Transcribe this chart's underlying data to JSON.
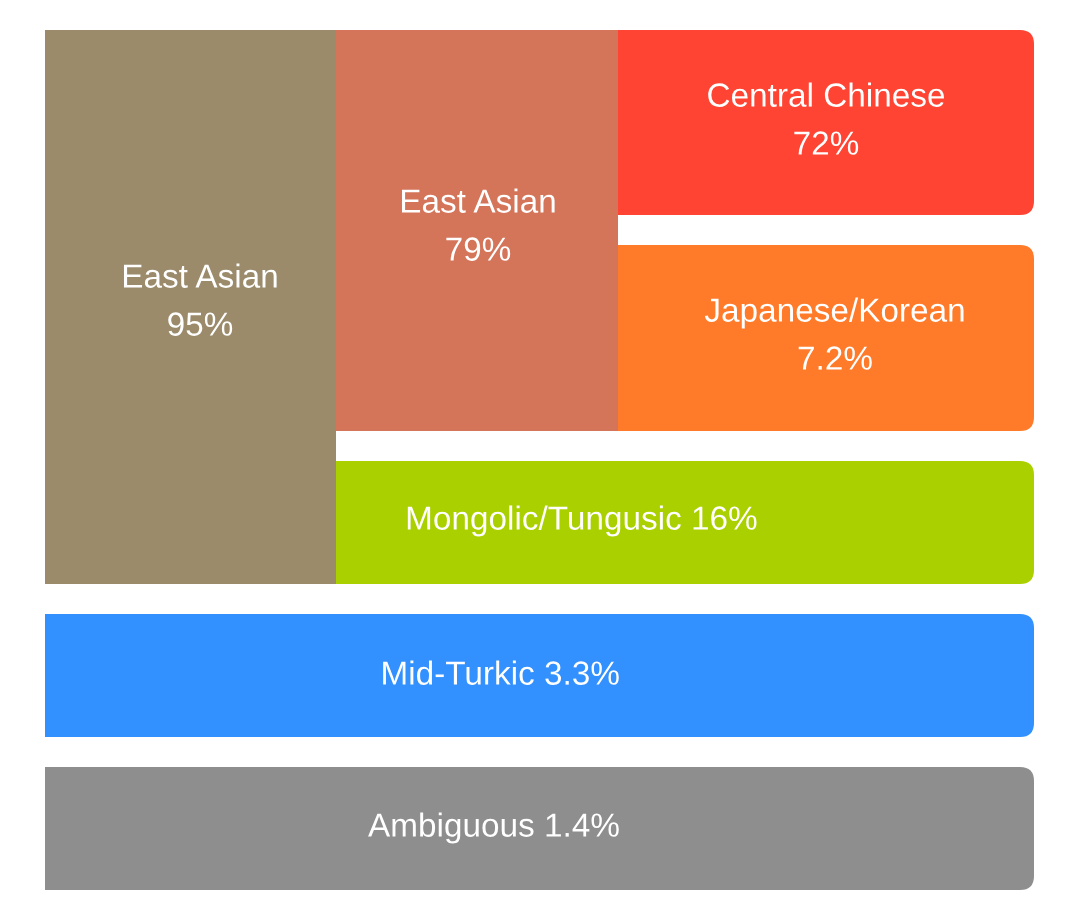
{
  "chart_data": {
    "type": "other",
    "categories": [
      "East Asian",
      "East Asian",
      "Central Chinese",
      "Japanese/Korean",
      "Mongolic/Tungusic",
      "Mid-Turkic",
      "Ambiguous"
    ],
    "values": [
      95,
      79,
      72,
      7.2,
      16,
      3.3,
      1.4
    ],
    "value_labels": [
      "95%",
      "79%",
      "72%",
      "7.2%",
      "16%",
      "3.3%",
      "1.4%"
    ],
    "colors": [
      "#9b8b6b",
      "#d4755a",
      "#ff4433",
      "#ff7b2a",
      "#aad000",
      "#3390ff",
      "#8e8e8e"
    ]
  }
}
